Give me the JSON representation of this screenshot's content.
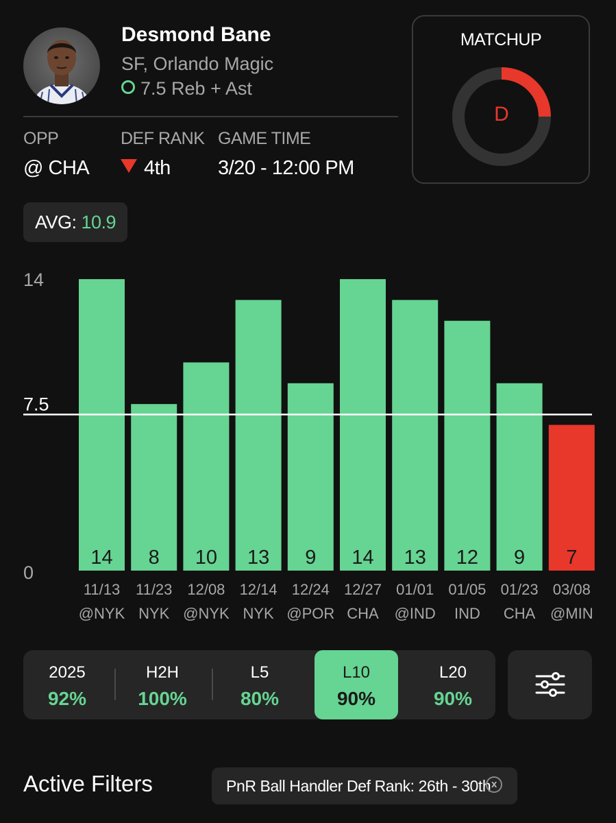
{
  "player": {
    "name": "Desmond Bane",
    "position_team": "SF, Orlando Magic",
    "prop_line": "7.5 Reb + Ast"
  },
  "info": {
    "opp_label": "OPP",
    "opp_value": "@ CHA",
    "def_rank_label": "DEF RANK",
    "def_rank_value": "4th",
    "game_time_label": "GAME TIME",
    "game_time_value": "3/20 - 12:00 PM"
  },
  "matchup": {
    "title": "MATCHUP",
    "grade": "D",
    "gauge_fraction": 0.25
  },
  "avg": {
    "label": "AVG: ",
    "value": "10.9"
  },
  "colors": {
    "over": "#66d492",
    "under": "#e8372b",
    "background": "#111111",
    "panel": "#262626"
  },
  "chart_data": {
    "type": "bar",
    "dates": [
      "11/13",
      "11/23",
      "12/08",
      "12/14",
      "12/24",
      "12/27",
      "01/01",
      "01/05",
      "01/23",
      "03/08"
    ],
    "opponents": [
      "@NYK",
      "NYK",
      "@NYK",
      "NYK",
      "@POR",
      "CHA",
      "@IND",
      "IND",
      "CHA",
      "@MIN"
    ],
    "values": [
      14,
      8,
      10,
      13,
      9,
      14,
      13,
      12,
      9,
      7
    ],
    "line": 7.5,
    "y_ticks": [
      "14",
      "7.5",
      "0"
    ],
    "ylim": [
      0,
      14
    ]
  },
  "segments": [
    {
      "label": "2025",
      "value": "92%",
      "active": false
    },
    {
      "label": "H2H",
      "value": "100%",
      "active": false
    },
    {
      "label": "L5",
      "value": "80%",
      "active": false
    },
    {
      "label": "L10",
      "value": "90%",
      "active": true
    },
    {
      "label": "L20",
      "value": "90%",
      "active": false
    }
  ],
  "filters": {
    "title": "Active Filters",
    "chips": [
      {
        "label": "PnR Ball Handler Def Rank: 26th - 30th",
        "close": "x"
      }
    ]
  }
}
